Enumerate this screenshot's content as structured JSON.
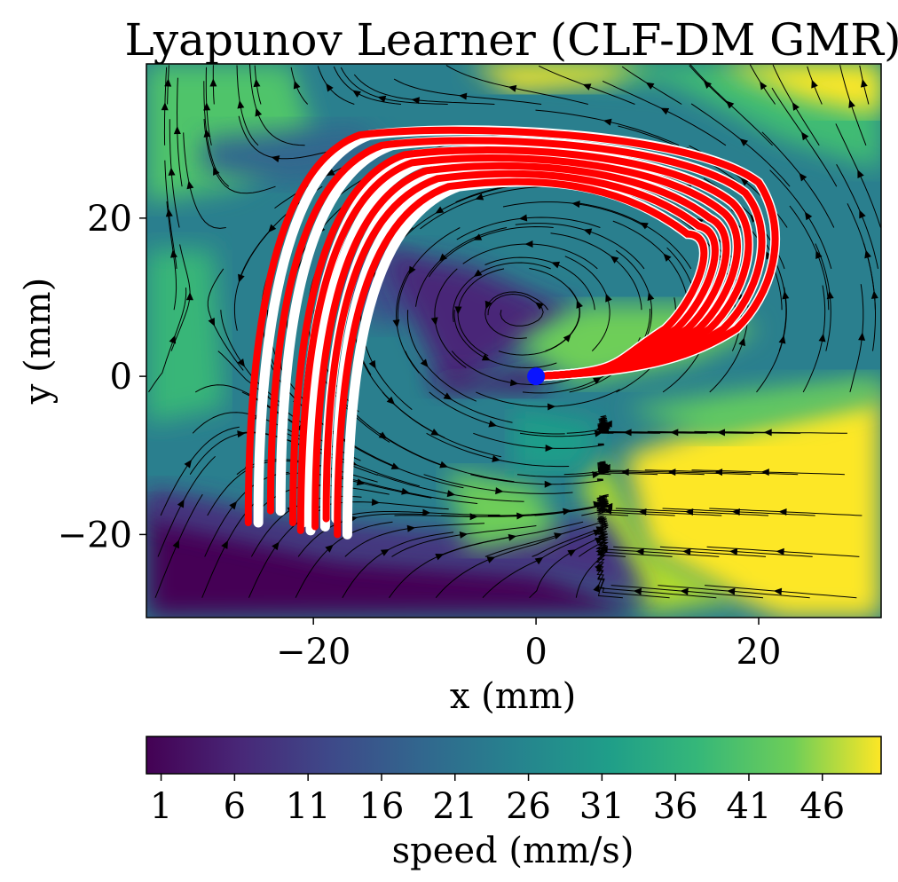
{
  "chart_data": {
    "type": "streamplot",
    "title": "Lyapunov Learner (CLF-DM GMR)",
    "xlabel": "x (mm)",
    "ylabel": "y (mm)",
    "xlim": [
      -35,
      31
    ],
    "ylim": [
      -30.5,
      39.5
    ],
    "xticks": [
      {
        "value": -20,
        "label": "−20"
      },
      {
        "value": 0,
        "label": "0"
      },
      {
        "value": 20,
        "label": "20"
      }
    ],
    "yticks": [
      {
        "value": 20,
        "label": "20"
      },
      {
        "value": 0,
        "label": "0"
      },
      {
        "value": -20,
        "label": "−20"
      }
    ],
    "grid": false,
    "colormap": "viridis",
    "colorbar": {
      "label": "speed (mm/s)",
      "min": 0,
      "max": 50,
      "ticks": [
        {
          "value": 1,
          "label": "1"
        },
        {
          "value": 6,
          "label": "6"
        },
        {
          "value": 11,
          "label": "11"
        },
        {
          "value": 16,
          "label": "16"
        },
        {
          "value": 21,
          "label": "21"
        },
        {
          "value": 26,
          "label": "26"
        },
        {
          "value": 31,
          "label": "31"
        },
        {
          "value": 36,
          "label": "36"
        },
        {
          "value": 41,
          "label": "41"
        },
        {
          "value": 46,
          "label": "46"
        }
      ]
    },
    "attractor": {
      "x": 0,
      "y": 0,
      "color": "#0a14ff"
    },
    "demo_color": "#ffffff",
    "repro_color": "#ff0000",
    "trajectories": [
      {
        "start": [
          -25.5,
          -18.5
        ],
        "apex": 30.5,
        "right": 22.0
      },
      {
        "start": [
          -23.5,
          -17.0
        ],
        "apex": 29.2,
        "right": 20.8
      },
      {
        "start": [
          -21.5,
          -18.5
        ],
        "apex": 28.0,
        "right": 19.6
      },
      {
        "start": [
          -20.8,
          -19.5
        ],
        "apex": 27.0,
        "right": 18.6
      },
      {
        "start": [
          -19.5,
          -19.0
        ],
        "apex": 26.0,
        "right": 17.6
      },
      {
        "start": [
          -18.5,
          -18.0
        ],
        "apex": 25.0,
        "right": 16.6
      },
      {
        "start": [
          -17.5,
          -20.0
        ],
        "apex": 24.0,
        "right": 15.6
      }
    ]
  }
}
